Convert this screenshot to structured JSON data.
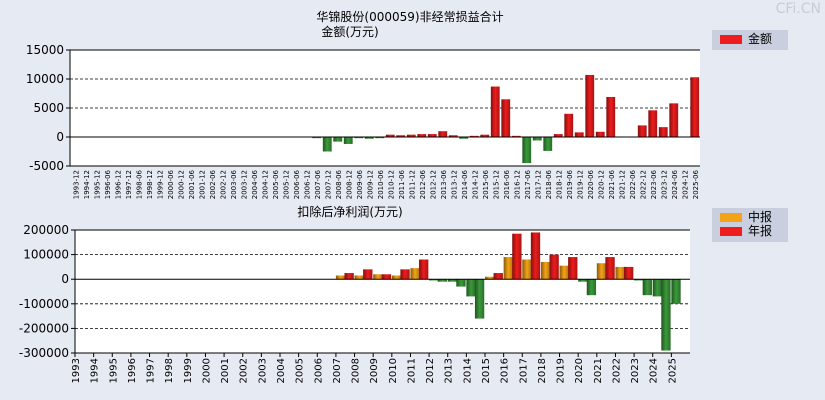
{
  "watermark": "CFi.CN",
  "colors": {
    "annual_red": "#ee1c1c",
    "interim_orange": "#f5a316",
    "negative_green": "#3a9a3a",
    "background": "#e6eaf2"
  },
  "chart_data": [
    {
      "type": "bar",
      "title": "华锦股份(000059)非经常损益合计",
      "subtitle": "金额(万元)",
      "legend": [
        {
          "name": "金额",
          "color": "#ee1c1c"
        }
      ],
      "ylim": [
        -5000,
        15000
      ],
      "yticks": [
        -5000,
        0,
        5000,
        10000,
        15000
      ],
      "categories": [
        "1993-12",
        "1994-12",
        "1995-12",
        "1996-06",
        "1996-12",
        "1997-12",
        "1998-06",
        "1998-12",
        "1999-12",
        "2000-06",
        "2000-12",
        "2001-06",
        "2001-12",
        "2002-06",
        "2002-12",
        "2003-06",
        "2003-12",
        "2004-06",
        "2004-12",
        "2005-06",
        "2005-12",
        "2006-06",
        "2006-12",
        "2007-06",
        "2007-12",
        "2008-06",
        "2008-12",
        "2009-06",
        "2009-12",
        "2010-06",
        "2010-12",
        "2011-06",
        "2011-12",
        "2012-06",
        "2012-12",
        "2013-06",
        "2013-12",
        "2014-06",
        "2014-12",
        "2015-06",
        "2015-12",
        "2016-06",
        "2016-12",
        "2017-06",
        "2017-12",
        "2018-06",
        "2018-12",
        "2019-06",
        "2019-12",
        "2020-06",
        "2020-12",
        "2021-06",
        "2021-12",
        "2022-06",
        "2022-12",
        "2023-06",
        "2023-12",
        "2024-06",
        "2024-12",
        "2025-06"
      ],
      "values": [
        null,
        null,
        null,
        null,
        null,
        null,
        null,
        null,
        null,
        null,
        null,
        null,
        null,
        null,
        null,
        null,
        null,
        null,
        null,
        null,
        null,
        null,
        null,
        -200,
        -2500,
        -800,
        -1200,
        -200,
        -300,
        -200,
        400,
        300,
        400,
        500,
        500,
        1000,
        300,
        -300,
        200,
        400,
        8700,
        6500,
        200,
        -4500,
        -600,
        -2400,
        500,
        4000,
        800,
        10700,
        900,
        6900,
        null,
        null,
        2000,
        4600,
        1700,
        5800,
        null,
        10300
      ]
    },
    {
      "type": "bar",
      "title": "扣除后净利润(万元)",
      "legend": [
        {
          "name": "中报",
          "color": "#f5a316"
        },
        {
          "name": "年报",
          "color": "#ee1c1c"
        }
      ],
      "ylim": [
        -300000,
        200000
      ],
      "yticks": [
        -300000,
        -200000,
        -100000,
        0,
        100000,
        200000
      ],
      "categories": [
        "1993",
        "1994",
        "1995",
        "1996",
        "1997",
        "1998",
        "1999",
        "2000",
        "2001",
        "2002",
        "2003",
        "2004",
        "2005",
        "2006",
        "2007",
        "2008",
        "2009",
        "2010",
        "2011",
        "2012",
        "2013",
        "2014",
        "2015",
        "2016",
        "2017",
        "2018",
        "2019",
        "2020",
        "2021",
        "2022",
        "2023",
        "2024",
        "2025"
      ],
      "series": [
        {
          "name": "中报",
          "values": [
            null,
            null,
            null,
            null,
            null,
            null,
            null,
            null,
            null,
            null,
            null,
            null,
            null,
            null,
            15000,
            15000,
            20000,
            15000,
            45000,
            -5000,
            -10000,
            -70000,
            10000,
            90000,
            80000,
            70000,
            55000,
            -10000,
            65000,
            50000,
            -5000,
            -70000,
            -100000
          ]
        },
        {
          "name": "年报",
          "values": [
            null,
            null,
            null,
            null,
            null,
            null,
            null,
            null,
            null,
            null,
            null,
            null,
            null,
            null,
            25000,
            40000,
            20000,
            40000,
            80000,
            -10000,
            -30000,
            -160000,
            25000,
            185000,
            190000,
            100000,
            90000,
            -65000,
            90000,
            50000,
            -65000,
            -290000,
            null
          ]
        }
      ]
    }
  ]
}
